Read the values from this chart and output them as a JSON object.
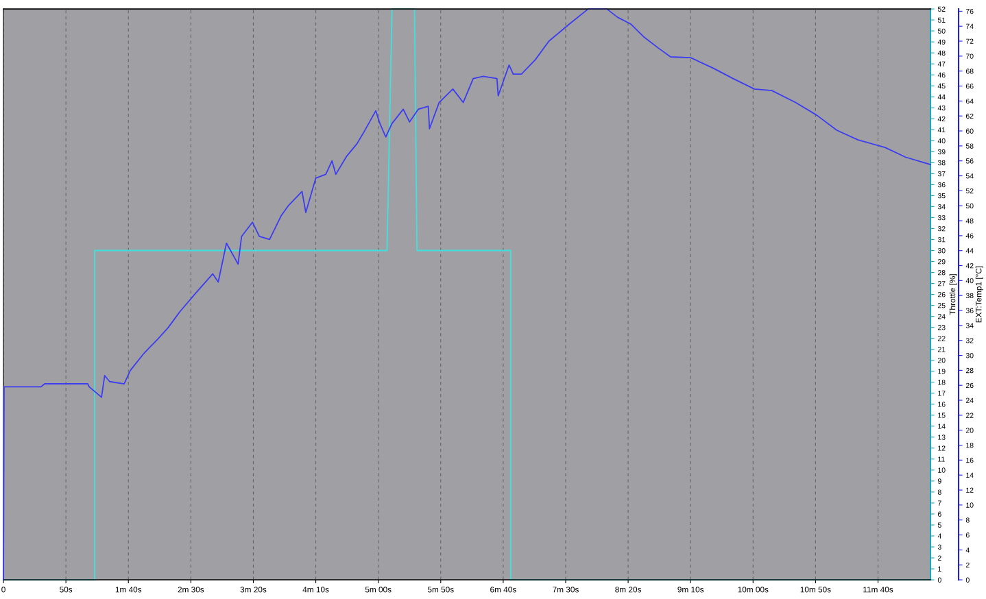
{
  "chart_data": {
    "type": "line",
    "xlim": [
      0,
      742
    ],
    "xticks": [
      0,
      {
        "value": 50,
        "label": "50s"
      },
      {
        "value": 100,
        "label": "1m 40s"
      },
      {
        "value": 150,
        "label": "2m 30s"
      },
      {
        "value": 200,
        "label": "3m 20s"
      },
      {
        "value": 250,
        "label": "4m 10s"
      },
      {
        "value": 300,
        "label": "5m 00s"
      },
      {
        "value": 350,
        "label": "5m 50s"
      },
      {
        "value": 400,
        "label": "6m 40s"
      },
      {
        "value": 450,
        "label": "7m 30s"
      },
      {
        "value": 500,
        "label": "8m 20s"
      },
      {
        "value": 550,
        "label": "9m 10s"
      },
      {
        "value": 600,
        "label": "10m 00s"
      },
      {
        "value": 650,
        "label": "10m 50s"
      },
      {
        "value": 700,
        "label": "11m 40s"
      }
    ],
    "ylabel": "Throttle [%]",
    "ylim": [
      0,
      52
    ],
    "yticks": [
      0,
      1,
      2,
      3,
      4,
      5,
      6,
      7,
      8,
      9,
      10,
      11,
      12,
      13,
      14,
      15,
      16,
      17,
      18,
      19,
      20,
      21,
      22,
      23,
      24,
      25,
      26,
      27,
      28,
      29,
      30,
      31,
      32,
      33,
      34,
      35,
      36,
      37,
      38,
      39,
      40,
      41,
      42,
      43,
      44,
      45,
      46,
      47,
      48,
      49,
      50,
      51,
      52
    ],
    "y2label": "EXT:Temp1 [°C]",
    "y2lim": [
      0,
      76.3
    ],
    "y2ticks": [
      0,
      2,
      4,
      6,
      8,
      10,
      12,
      14,
      16,
      18,
      20,
      22,
      24,
      26,
      28,
      30,
      32,
      34,
      36,
      38,
      40,
      42,
      44,
      46,
      48,
      50,
      52,
      54,
      56,
      58,
      60,
      62,
      64,
      66,
      68,
      70,
      72,
      74,
      76
    ],
    "grid": "x",
    "line_style": "solid",
    "marker": "none",
    "series": [
      {
        "color": "#40e0e0",
        "x": [
          0,
          73,
          73,
          307,
          311,
          329,
          331,
          406,
          406,
          742
        ],
        "values": [
          0,
          0,
          30,
          30,
          52,
          52,
          30,
          30,
          0,
          0
        ]
      },
      {
        "color": "#3c3cf0",
        "axis": "y2",
        "x": [
          0,
          0.5,
          30,
          33,
          67.5,
          68.6,
          78.5,
          81,
          85,
          96.6,
          101.6,
          112.6,
          123.6,
          131.8,
          141,
          153.8,
          167.5,
          171.9,
          178.5,
          187.8,
          190.6,
          199.3,
          204.8,
          213,
          222.4,
          228,
          239,
          242,
          250,
          258,
          263,
          266,
          274.6,
          283,
          288,
          298,
          301.3,
          306,
          311,
          320,
          325,
          332,
          340,
          341,
          348.7,
          359.7,
          368,
          376,
          384,
          395,
          396,
          404.7,
          408,
          414.6,
          425.6,
          436.6,
          453,
          468,
          483,
          491.5,
          502,
          513,
          524,
          534,
          550,
          568,
          584,
          601,
          615,
          634,
          651,
          667,
          684,
          705.6,
          722,
          736,
          742
        ],
        "values": [
          0,
          25.8,
          25.8,
          26.2,
          26.2,
          25.8,
          24.4,
          27.3,
          26.5,
          26.2,
          28.0,
          30.3,
          32.2,
          33.7,
          35.8,
          38.3,
          40.9,
          39.8,
          45.0,
          42.2,
          45.9,
          47.8,
          45.9,
          45.5,
          48.7,
          50.0,
          51.9,
          49.1,
          53.7,
          54.2,
          56.0,
          54.2,
          56.6,
          58.3,
          59.7,
          62.7,
          61.0,
          59.2,
          61.0,
          62.9,
          61.2,
          62.9,
          63.3,
          60.3,
          63.8,
          65.6,
          63.8,
          67.0,
          67.3,
          67.0,
          64.7,
          68.8,
          67.6,
          67.6,
          69.5,
          72.0,
          74.3,
          76.3,
          76.3,
          75.2,
          74.3,
          72.5,
          71.1,
          69.9,
          69.8,
          68.4,
          67.0,
          65.6,
          65.4,
          63.8,
          62.1,
          60.1,
          58.8,
          57.8,
          56.5,
          55.8,
          55.5
        ]
      }
    ]
  }
}
